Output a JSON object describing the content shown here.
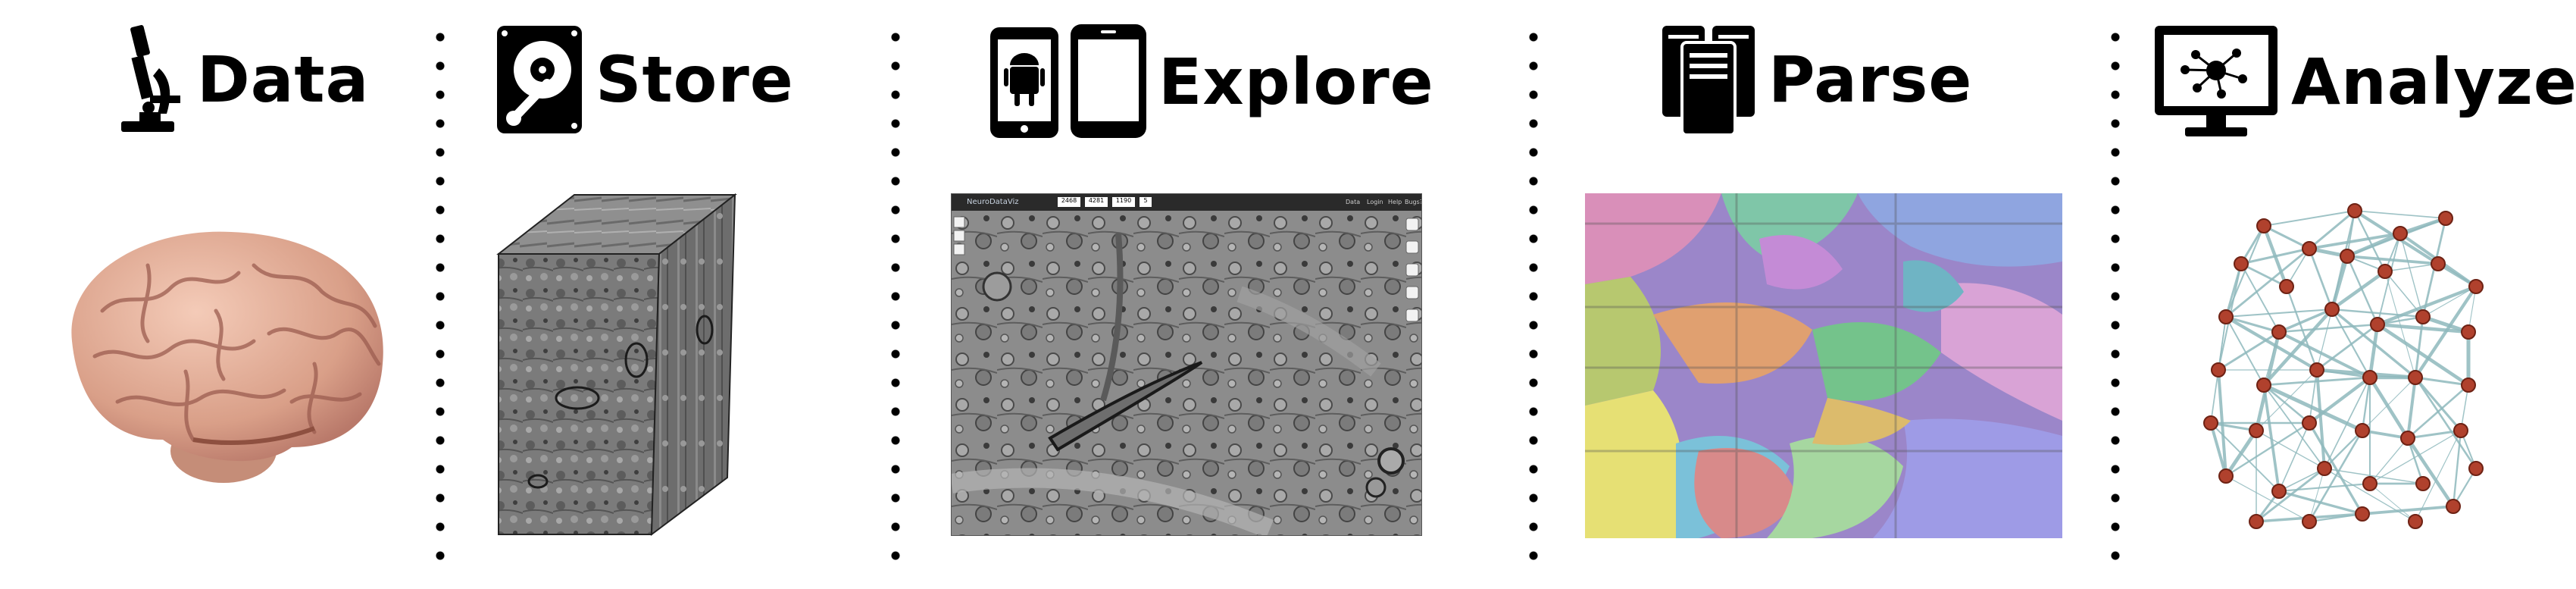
{
  "stages": [
    {
      "label": "Data",
      "icon": "microscope-icon",
      "image": "brain"
    },
    {
      "label": "Store",
      "icon": "hard-drive-icon",
      "image": "em-volume-cube"
    },
    {
      "label": "Explore",
      "icon": "mobile-devices-icon",
      "image": "neurodata-viewer"
    },
    {
      "label": "Parse",
      "icon": "server-rack-icon",
      "image": "segmentation-map"
    },
    {
      "label": "Analyze",
      "icon": "monitor-network-icon",
      "image": "connectome-graph"
    }
  ],
  "viewer": {
    "app_name": "NeuroDataViz",
    "menu": [
      "Data",
      "Login",
      "Help",
      "Bugs?"
    ],
    "coords": [
      "2468",
      "4281",
      "1190",
      "5"
    ]
  },
  "colors": {
    "ink": "#000000",
    "brain": "#e5b4a0",
    "graph_edge": "#8fb9bd",
    "graph_node": "#b0412d"
  }
}
